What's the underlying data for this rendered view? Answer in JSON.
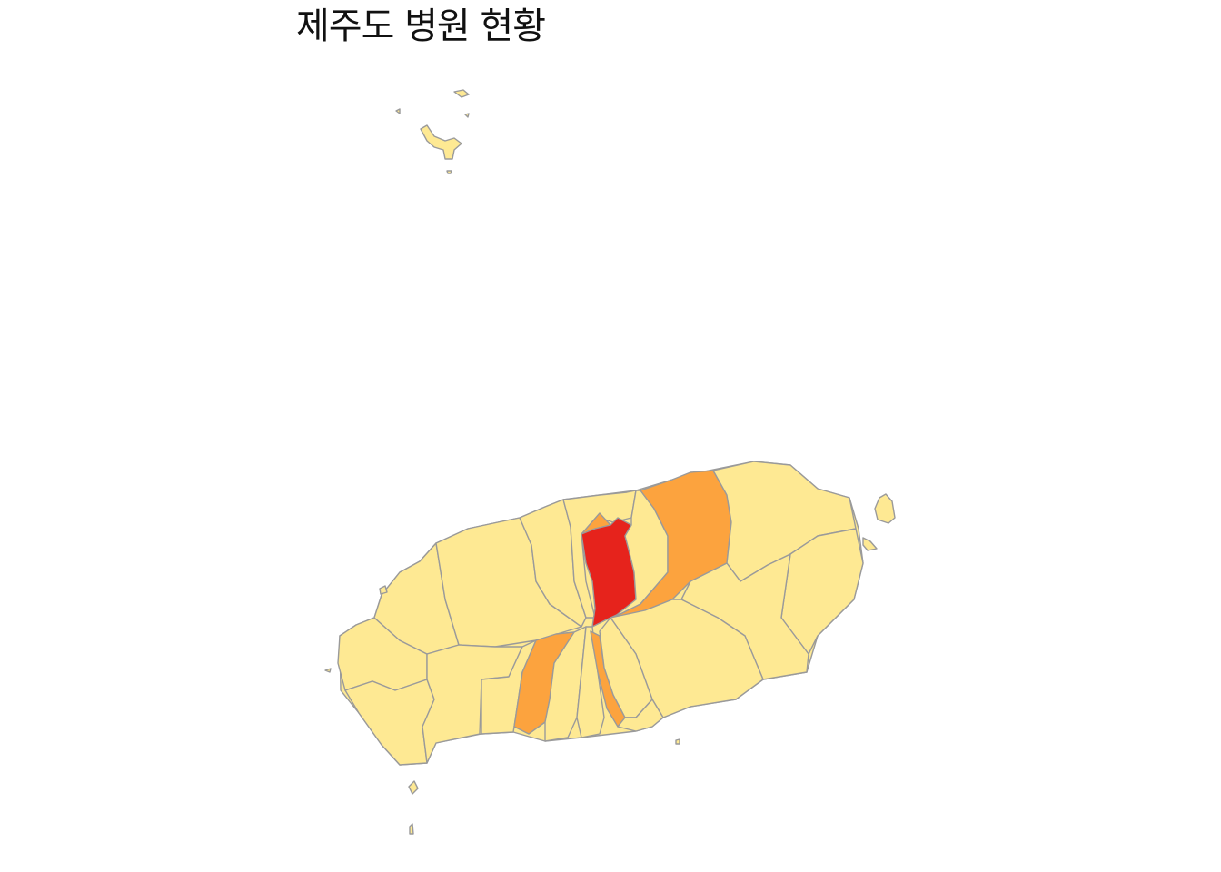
{
  "title": "제주도 병원 현황",
  "palette": {
    "low": "#FEE993",
    "mid": "#FCA33E",
    "high": "#E6231C",
    "border": "#9A9A9A"
  },
  "regions": [
    {
      "name": "west-coast-a",
      "level": "low"
    },
    {
      "name": "west-coast-b",
      "level": "low"
    },
    {
      "name": "west-inland-a",
      "level": "low"
    },
    {
      "name": "west-inland-b",
      "level": "low"
    },
    {
      "name": "southwest-a",
      "level": "low"
    },
    {
      "name": "southwest-b",
      "level": "low"
    },
    {
      "name": "south-a",
      "level": "low"
    },
    {
      "name": "south-b",
      "level": "low"
    },
    {
      "name": "north-center-a",
      "level": "low"
    },
    {
      "name": "north-center-b",
      "level": "low"
    },
    {
      "name": "north-center-c",
      "level": "mid"
    },
    {
      "name": "center-hospital-district",
      "level": "high"
    },
    {
      "name": "northeast-strip",
      "level": "mid"
    },
    {
      "name": "north-east-between",
      "level": "low"
    },
    {
      "name": "east-a",
      "level": "low"
    },
    {
      "name": "east-b",
      "level": "low"
    },
    {
      "name": "east-c",
      "level": "low"
    },
    {
      "name": "south-center-a",
      "level": "low"
    },
    {
      "name": "south-strip-west",
      "level": "mid"
    },
    {
      "name": "south-strip-center",
      "level": "mid"
    },
    {
      "name": "south-narrow-a",
      "level": "low"
    },
    {
      "name": "south-narrow-b",
      "level": "low"
    },
    {
      "name": "south-narrow-c",
      "level": "low"
    },
    {
      "name": "south-east-coast",
      "level": "low"
    }
  ],
  "islands": [
    {
      "name": "chuja-main",
      "level": "low"
    },
    {
      "name": "chuja-north",
      "level": "low"
    },
    {
      "name": "chuja-small-1",
      "level": "low"
    },
    {
      "name": "chuja-small-2",
      "level": "low"
    },
    {
      "name": "chuja-small-3",
      "level": "low"
    },
    {
      "name": "udo",
      "level": "low"
    },
    {
      "name": "seongsan-islet",
      "level": "low"
    },
    {
      "name": "gapado",
      "level": "low"
    },
    {
      "name": "marado",
      "level": "low"
    },
    {
      "name": "biyangdo",
      "level": "low"
    },
    {
      "name": "west-islet",
      "level": "low"
    },
    {
      "name": "south-islet",
      "level": "low"
    }
  ]
}
